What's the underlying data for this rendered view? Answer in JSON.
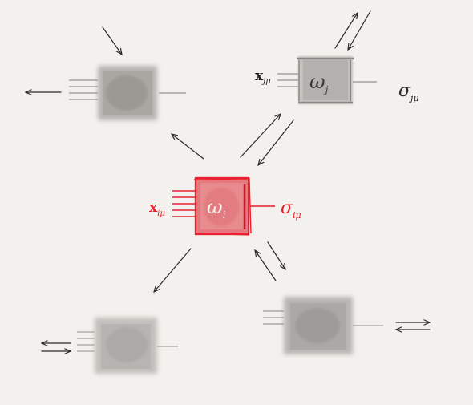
{
  "colors": {
    "background": "#f3f1ed",
    "ink": "#2a2a2a",
    "gray_box": "#a9a7a4",
    "gray_box_dark": "#8f8d8a",
    "gray_box_light": "#c9c7c3",
    "red_box": "#e26a6f",
    "red_border": "#e8202f",
    "red_ink": "#e8202f"
  },
  "center_node": {
    "label": "ω",
    "label_sub": "i",
    "input_label": "x",
    "input_label_sub": "iμ",
    "output_label": "σ",
    "output_label_sub": "iμ"
  },
  "top_right_node": {
    "label": "ω",
    "label_sub": "j",
    "input_label": "x",
    "input_label_sub": "jμ",
    "output_label": "σ",
    "output_label_sub": "jμ"
  },
  "top_left_node": {},
  "bottom_left_node": {},
  "bottom_right_node": {}
}
